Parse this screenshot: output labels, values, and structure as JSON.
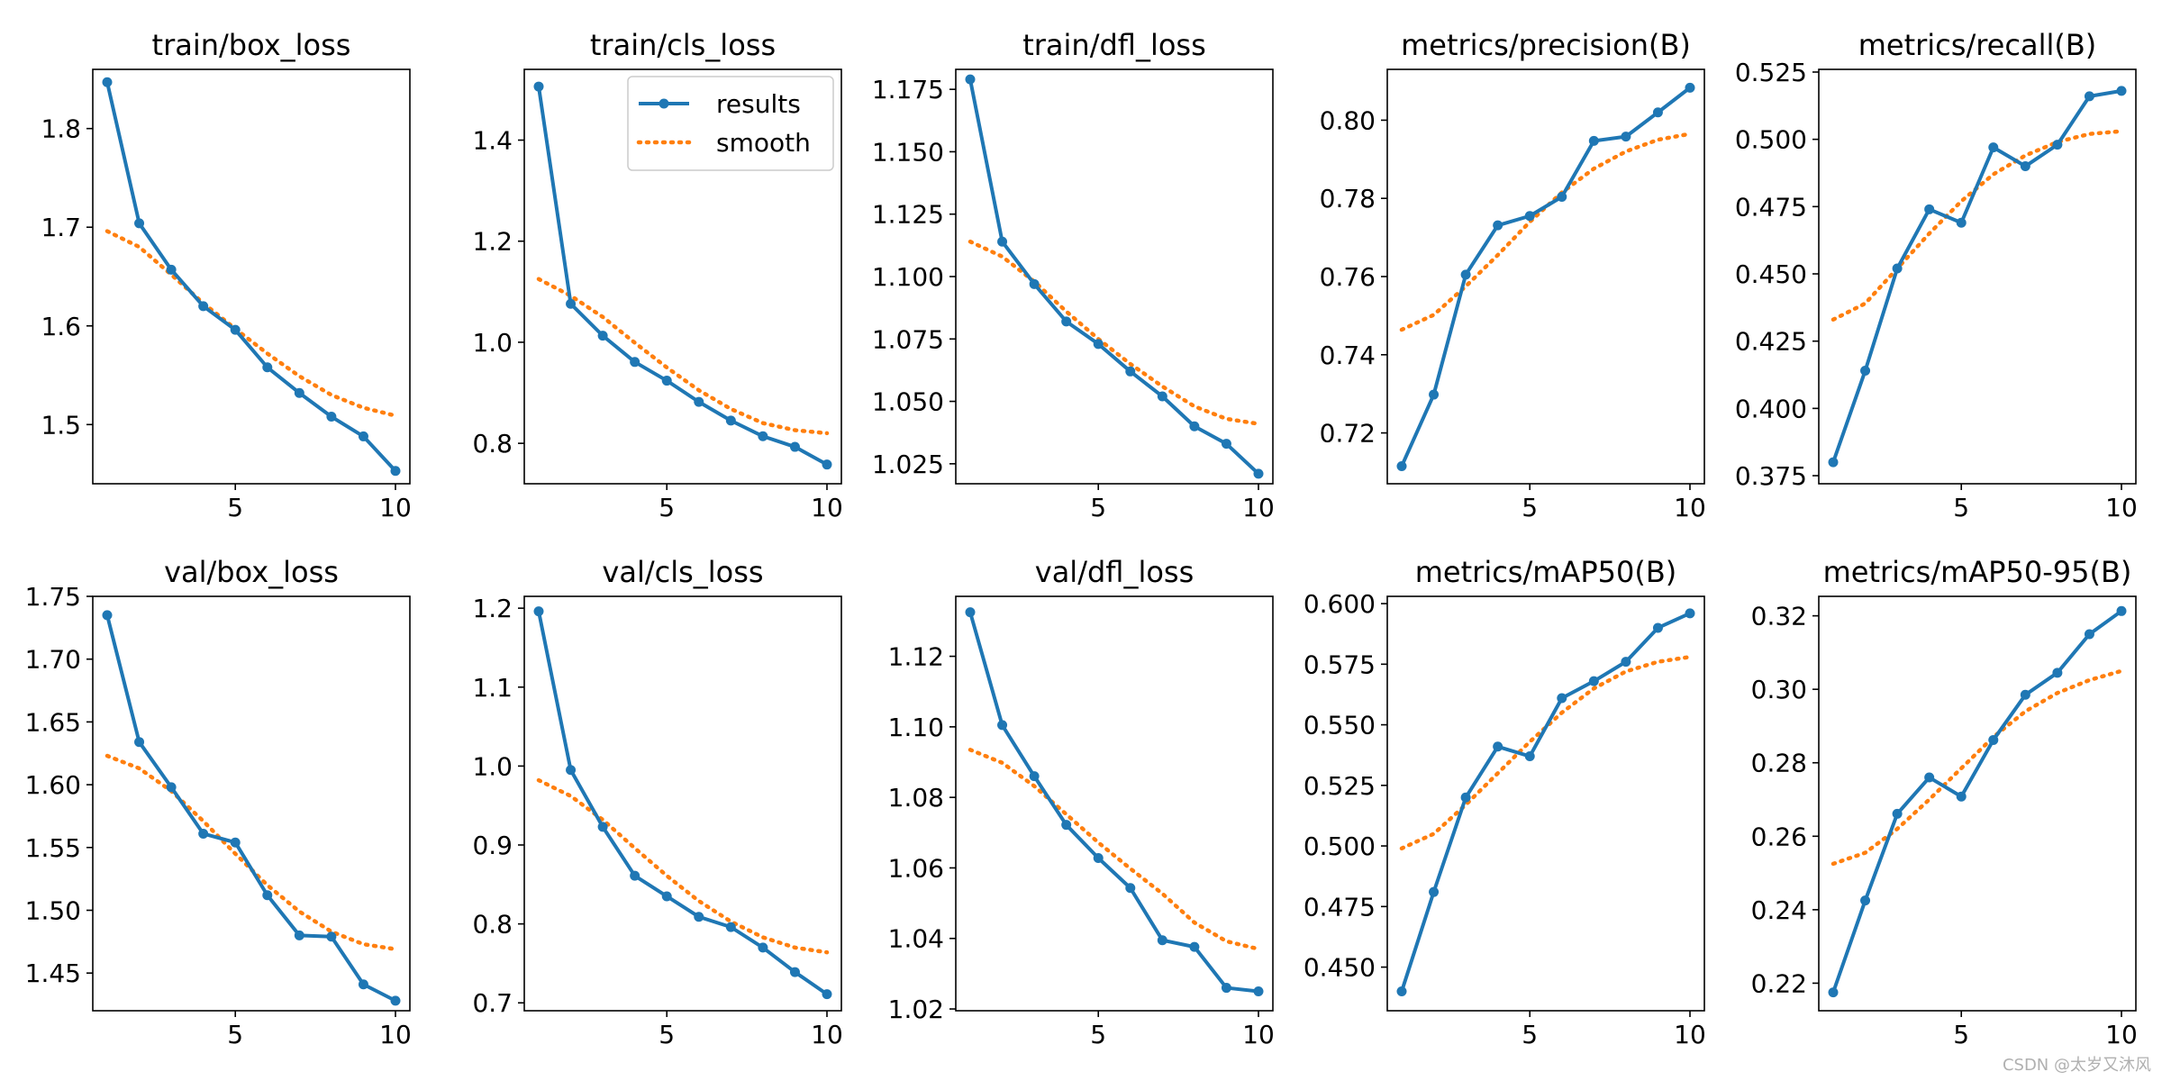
{
  "colors": {
    "results": "#1f77b4",
    "smooth": "#ff7f0e"
  },
  "legend": {
    "results": "results",
    "smooth": "smooth",
    "placement": "upper-right of second panel"
  },
  "watermark": "CSDN @太岁又沐风",
  "chart_data": [
    {
      "type": "line",
      "title": "train/box_loss",
      "x": [
        1,
        2,
        3,
        4,
        5,
        6,
        7,
        8,
        9,
        10
      ],
      "yticks": [
        1.5,
        1.6,
        1.7,
        1.8
      ],
      "ylim": [
        1.44,
        1.86
      ],
      "series": [
        {
          "name": "results",
          "values": [
            1.847,
            1.704,
            1.657,
            1.62,
            1.596,
            1.558,
            1.532,
            1.508,
            1.488,
            1.453
          ]
        },
        {
          "name": "smooth",
          "values": [
            1.696,
            1.68,
            1.652,
            1.623,
            1.597,
            1.572,
            1.549,
            1.53,
            1.517,
            1.509
          ]
        }
      ]
    },
    {
      "type": "line",
      "title": "train/cls_loss",
      "x": [
        1,
        2,
        3,
        4,
        5,
        6,
        7,
        8,
        9,
        10
      ],
      "yticks": [
        0.8,
        1.0,
        1.2,
        1.4
      ],
      "ylim": [
        0.72,
        1.54
      ],
      "series": [
        {
          "name": "results",
          "values": [
            1.506,
            1.076,
            1.013,
            0.961,
            0.924,
            0.882,
            0.845,
            0.814,
            0.793,
            0.758
          ]
        },
        {
          "name": "smooth",
          "values": [
            1.125,
            1.092,
            1.05,
            0.999,
            0.95,
            0.905,
            0.868,
            0.84,
            0.826,
            0.82
          ]
        }
      ]
    },
    {
      "type": "line",
      "title": "train/dfl_loss",
      "x": [
        1,
        2,
        3,
        4,
        5,
        6,
        7,
        8,
        9,
        10
      ],
      "yticks": [
        1.025,
        1.05,
        1.075,
        1.1,
        1.125,
        1.15,
        1.175
      ],
      "ylim": [
        1.017,
        1.183
      ],
      "series": [
        {
          "name": "results",
          "values": [
            1.179,
            1.114,
            1.097,
            1.082,
            1.073,
            1.062,
            1.052,
            1.04,
            1.033,
            1.021
          ]
        },
        {
          "name": "smooth",
          "values": [
            1.114,
            1.108,
            1.098,
            1.086,
            1.075,
            1.065,
            1.056,
            1.048,
            1.043,
            1.041
          ]
        }
      ]
    },
    {
      "type": "line",
      "title": "metrics/precision(B)",
      "x": [
        1,
        2,
        3,
        4,
        5,
        6,
        7,
        8,
        9,
        10
      ],
      "yticks": [
        0.72,
        0.74,
        0.76,
        0.78,
        0.8
      ],
      "ylim": [
        0.707,
        0.813
      ],
      "series": [
        {
          "name": "results",
          "values": [
            0.7115,
            0.7298,
            0.7605,
            0.7731,
            0.7755,
            0.7804,
            0.7947,
            0.7958,
            0.802,
            0.8083
          ]
        },
        {
          "name": "smooth",
          "values": [
            0.7464,
            0.7502,
            0.7575,
            0.7655,
            0.774,
            0.7815,
            0.7876,
            0.792,
            0.795,
            0.7965
          ]
        }
      ]
    },
    {
      "type": "line",
      "title": "metrics/recall(B)",
      "x": [
        1,
        2,
        3,
        4,
        5,
        6,
        7,
        8,
        9,
        10
      ],
      "yticks": [
        0.375,
        0.4,
        0.425,
        0.45,
        0.475,
        0.5,
        0.525
      ],
      "ylim": [
        0.372,
        0.526
      ],
      "series": [
        {
          "name": "results",
          "values": [
            0.38,
            0.414,
            0.452,
            0.474,
            0.469,
            0.497,
            0.49,
            0.498,
            0.516,
            0.518
          ]
        },
        {
          "name": "smooth",
          "values": [
            0.433,
            0.439,
            0.452,
            0.465,
            0.477,
            0.487,
            0.494,
            0.499,
            0.502,
            0.503
          ]
        }
      ]
    },
    {
      "type": "line",
      "title": "val/box_loss",
      "x": [
        1,
        2,
        3,
        4,
        5,
        6,
        7,
        8,
        9,
        10
      ],
      "yticks": [
        1.45,
        1.5,
        1.55,
        1.6,
        1.65,
        1.7,
        1.75
      ],
      "ylim": [
        1.42,
        1.75
      ],
      "series": [
        {
          "name": "results",
          "values": [
            1.735,
            1.634,
            1.598,
            1.561,
            1.554,
            1.512,
            1.48,
            1.479,
            1.441,
            1.428
          ]
        },
        {
          "name": "smooth",
          "values": [
            1.623,
            1.613,
            1.595,
            1.571,
            1.545,
            1.52,
            1.499,
            1.483,
            1.473,
            1.469
          ]
        }
      ]
    },
    {
      "type": "line",
      "title": "val/cls_loss",
      "x": [
        1,
        2,
        3,
        4,
        5,
        6,
        7,
        8,
        9,
        10
      ],
      "yticks": [
        0.7,
        0.8,
        0.9,
        1.0,
        1.1,
        1.2
      ],
      "ylim": [
        0.69,
        1.215
      ],
      "series": [
        {
          "name": "results",
          "values": [
            1.196,
            0.995,
            0.923,
            0.861,
            0.835,
            0.809,
            0.796,
            0.77,
            0.739,
            0.711
          ]
        },
        {
          "name": "smooth",
          "values": [
            0.982,
            0.962,
            0.932,
            0.896,
            0.861,
            0.829,
            0.803,
            0.783,
            0.77,
            0.764
          ]
        }
      ]
    },
    {
      "type": "line",
      "title": "val/dfl_loss",
      "x": [
        1,
        2,
        3,
        4,
        5,
        6,
        7,
        8,
        9,
        10
      ],
      "yticks": [
        1.02,
        1.04,
        1.06,
        1.08,
        1.1,
        1.12
      ],
      "ylim": [
        1.0195,
        1.137
      ],
      "series": [
        {
          "name": "results",
          "values": [
            1.1325,
            1.1005,
            1.086,
            1.0722,
            1.0628,
            1.0543,
            1.0395,
            1.0376,
            1.026,
            1.025
          ]
        },
        {
          "name": "smooth",
          "values": [
            1.0935,
            1.0898,
            1.0832,
            1.0752,
            1.0672,
            1.0598,
            1.0527,
            1.0445,
            1.0392,
            1.037
          ]
        }
      ]
    },
    {
      "type": "line",
      "title": "metrics/mAP50(B)",
      "x": [
        1,
        2,
        3,
        4,
        5,
        6,
        7,
        8,
        9,
        10
      ],
      "yticks": [
        0.45,
        0.475,
        0.5,
        0.525,
        0.55,
        0.575,
        0.6
      ],
      "ylim": [
        0.432,
        0.603
      ],
      "series": [
        {
          "name": "results",
          "values": [
            0.44,
            0.481,
            0.52,
            0.541,
            0.537,
            0.561,
            0.568,
            0.576,
            0.59,
            0.596
          ]
        },
        {
          "name": "smooth",
          "values": [
            0.499,
            0.505,
            0.517,
            0.53,
            0.543,
            0.555,
            0.565,
            0.572,
            0.576,
            0.578
          ]
        }
      ]
    },
    {
      "type": "line",
      "title": "metrics/mAP50-95(B)",
      "x": [
        1,
        2,
        3,
        4,
        5,
        6,
        7,
        8,
        9,
        10
      ],
      "yticks": [
        0.22,
        0.24,
        0.26,
        0.28,
        0.3,
        0.32
      ],
      "ylim": [
        0.2125,
        0.3253
      ],
      "series": [
        {
          "name": "results",
          "values": [
            0.2175,
            0.2425,
            0.2661,
            0.276,
            0.2708,
            0.2862,
            0.2985,
            0.3045,
            0.315,
            0.3213
          ]
        },
        {
          "name": "smooth",
          "values": [
            0.2525,
            0.2555,
            0.262,
            0.27,
            0.2785,
            0.287,
            0.294,
            0.299,
            0.3025,
            0.305
          ]
        }
      ]
    }
  ]
}
